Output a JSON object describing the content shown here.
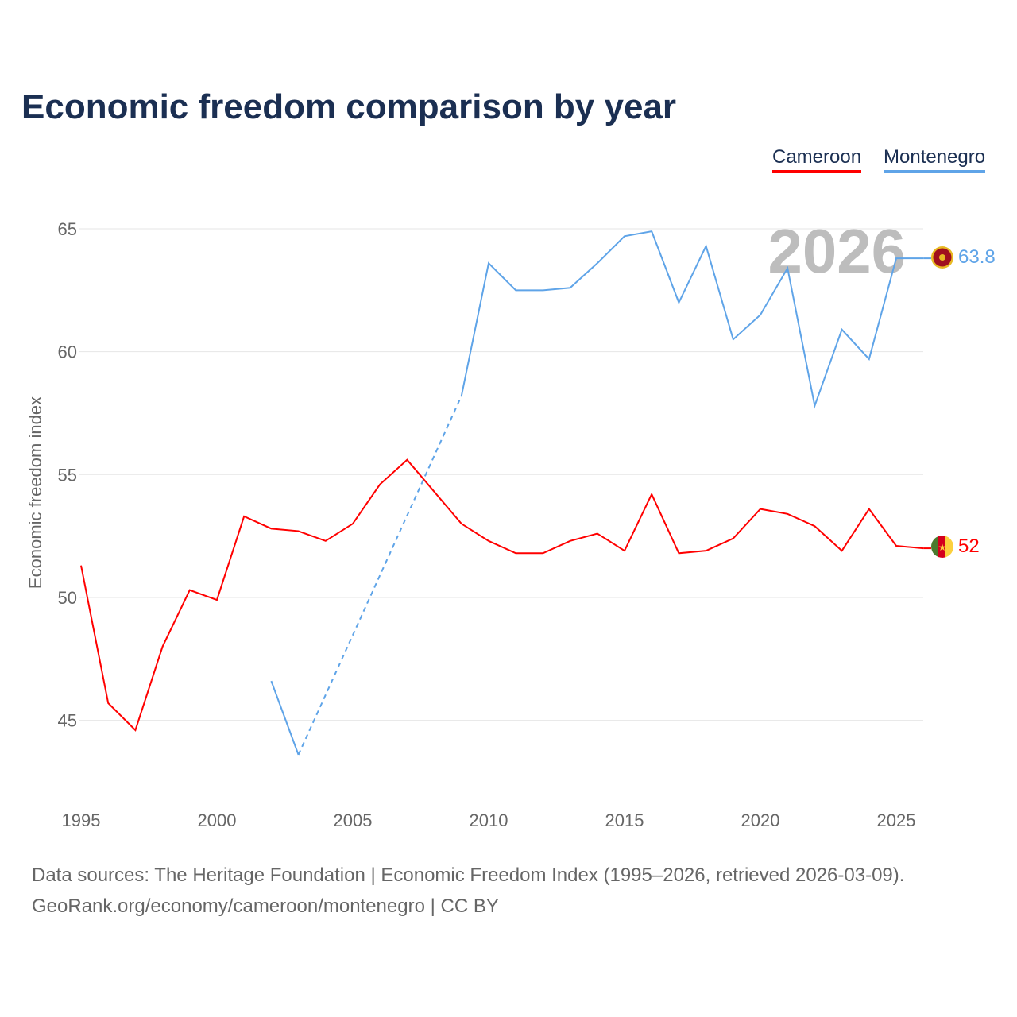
{
  "chart_data": {
    "type": "line",
    "title": "Economic freedom comparison by year",
    "xlabel": "",
    "ylabel": "Economic freedom index",
    "xlim": [
      1995,
      2026
    ],
    "ylim": [
      42,
      67
    ],
    "x_ticks": [
      "1995",
      "2000",
      "2005",
      "2010",
      "2015",
      "2020",
      "2025"
    ],
    "y_ticks": [
      "45",
      "50",
      "55",
      "60",
      "65"
    ],
    "grid": true,
    "legend_position": "top-right",
    "watermark_year": "2026",
    "x": [
      1995,
      1996,
      1997,
      1998,
      1999,
      2000,
      2001,
      2002,
      2003,
      2004,
      2005,
      2006,
      2007,
      2008,
      2009,
      2010,
      2011,
      2012,
      2013,
      2014,
      2015,
      2016,
      2017,
      2018,
      2019,
      2020,
      2021,
      2022,
      2023,
      2024,
      2025,
      2026
    ],
    "series": [
      {
        "name": "Cameroon",
        "color": "#ff0000",
        "end_label": "52",
        "values": [
          51.3,
          45.7,
          44.6,
          48.0,
          50.3,
          49.9,
          53.3,
          52.8,
          52.7,
          52.3,
          53.0,
          54.6,
          55.6,
          54.3,
          53.0,
          52.3,
          51.8,
          51.8,
          52.3,
          52.6,
          51.9,
          54.2,
          51.8,
          51.9,
          52.4,
          53.6,
          53.4,
          52.9,
          51.9,
          53.6,
          52.1,
          52.0
        ]
      },
      {
        "name": "Montenegro",
        "color": "#5fa4e8",
        "end_label": "63.8",
        "values": [
          null,
          null,
          null,
          null,
          null,
          null,
          null,
          46.6,
          43.6,
          null,
          null,
          null,
          null,
          null,
          58.2,
          63.6,
          62.5,
          62.5,
          62.6,
          63.6,
          64.7,
          64.9,
          62.0,
          64.3,
          60.5,
          61.5,
          63.4,
          57.8,
          60.9,
          59.7,
          63.8,
          63.8
        ]
      }
    ]
  },
  "footer": {
    "line1": "Data sources: The Heritage Foundation | Economic Freedom Index (1995–2026, retrieved 2026-03-09).",
    "line2": "GeoRank.org/economy/cameroon/montenegro | CC BY"
  }
}
